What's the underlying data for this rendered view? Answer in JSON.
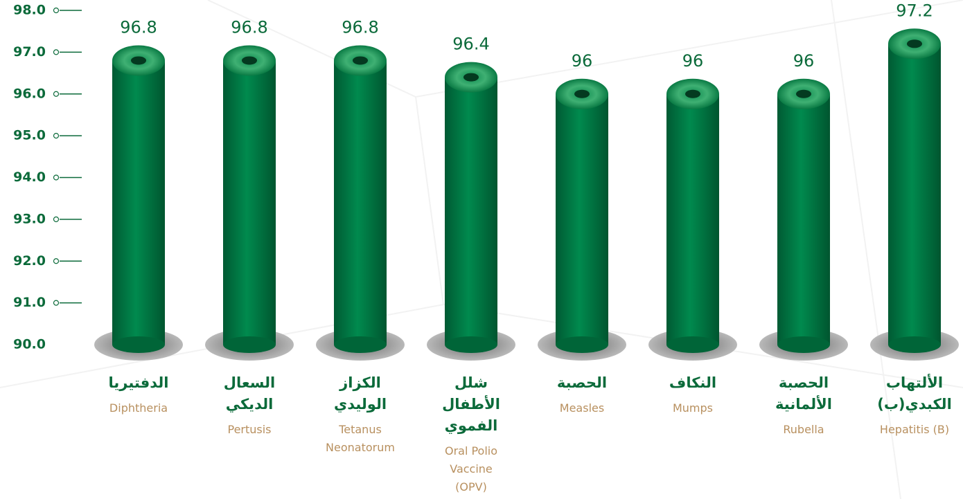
{
  "chart_data": {
    "type": "bar",
    "categories": [
      "الدفتيريا",
      "السعال الديكي",
      "الكزاز الوليدي",
      "شلل الأطفال الفموي",
      "الحصبة",
      "النكاف",
      "الحصبة الألمانية",
      "الألتهاب الكبدي(ب)"
    ],
    "categories_en": [
      "Diphtheria",
      "Pertusis",
      "Tetanus Neonatorum",
      "Oral Polio Vaccine (OPV)",
      "Measles",
      "Mumps",
      "Rubella",
      "Hepatitis (B)"
    ],
    "values": [
      96.8,
      96.8,
      96.8,
      96.4,
      96,
      96,
      96,
      97.2
    ],
    "color": "#00804a",
    "ylim": [
      90,
      98
    ],
    "yticks": [
      {
        "value": 90,
        "label": "90.0"
      },
      {
        "value": 91,
        "label": "91.0"
      },
      {
        "value": 92,
        "label": "92.0"
      },
      {
        "value": 93,
        "label": "93.0"
      },
      {
        "value": 94,
        "label": "94.0"
      },
      {
        "value": 95,
        "label": "95.0"
      },
      {
        "value": 96,
        "label": "96.0"
      },
      {
        "value": 97,
        "label": "97.0"
      },
      {
        "value": 98,
        "label": "98.0"
      }
    ]
  }
}
